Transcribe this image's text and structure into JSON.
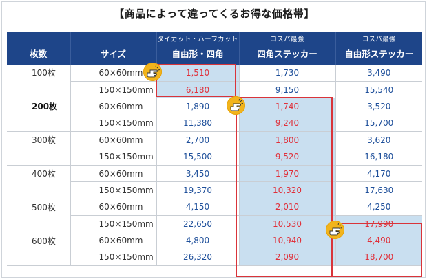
{
  "title": "【商品によって違ってくるお得な価格帯】",
  "headers": {
    "count": "枚数",
    "size": "サイズ",
    "col1_sub": "ダイカット・ハーフカット",
    "col1_main": "自由形・四角",
    "col2_sub": "コスパ最強",
    "col2_main": "四角ステッカー",
    "col3_sub": "コスパ最強",
    "col3_main": "自由形ステッカー"
  },
  "rows": [
    {
      "count": "100枚",
      "size": "60×60mm",
      "p1": "1,510",
      "p2": "1,730",
      "p3": "3,490"
    },
    {
      "count": "",
      "size": "150×150mm",
      "p1": "6,180",
      "p2": "9,150",
      "p3": "15,540"
    },
    {
      "count": "200枚",
      "size": "60×60mm",
      "p1": "1,890",
      "p2": "1,740",
      "p3": "3,520"
    },
    {
      "count": "",
      "size": "150×150mm",
      "p1": "11,380",
      "p2": "9,240",
      "p3": "15,700"
    },
    {
      "count": "300枚",
      "size": "60×60mm",
      "p1": "2,700",
      "p2": "1,800",
      "p3": "3,620"
    },
    {
      "count": "",
      "size": "150×150mm",
      "p1": "15,500",
      "p2": "9,520",
      "p3": "16,180"
    },
    {
      "count": "400枚",
      "size": "60×60mm",
      "p1": "3,450",
      "p2": "1,970",
      "p3": "4,170"
    },
    {
      "count": "",
      "size": "150×150mm",
      "p1": "19,370",
      "p2": "10,320",
      "p3": "17,630"
    },
    {
      "count": "500枚",
      "size": "60×60mm",
      "p1": "4,150",
      "p2": "2,010",
      "p3": "4,250"
    },
    {
      "count": "",
      "size": "150×150mm",
      "p1": "22,650",
      "p2": "10,530",
      "p3": "17,990"
    },
    {
      "count": "600枚",
      "size": "60×60mm",
      "p1": "4,800",
      "p2": "10,940",
      "p3": "4,490"
    },
    {
      "count": "",
      "size": "150×150mm",
      "p1": "26,320",
      "p2": "2,090",
      "p3": "18,700"
    }
  ],
  "colors": {
    "header_bg": "#1e4589",
    "highlight_bg": "#c9dff0",
    "highlight_text": "#e0303a",
    "normal_price_text": "#1e4f9a",
    "box_border": "#d9343a",
    "pointer": "#f2b41c"
  },
  "icons": [
    "pointing-hand-icon"
  ]
}
